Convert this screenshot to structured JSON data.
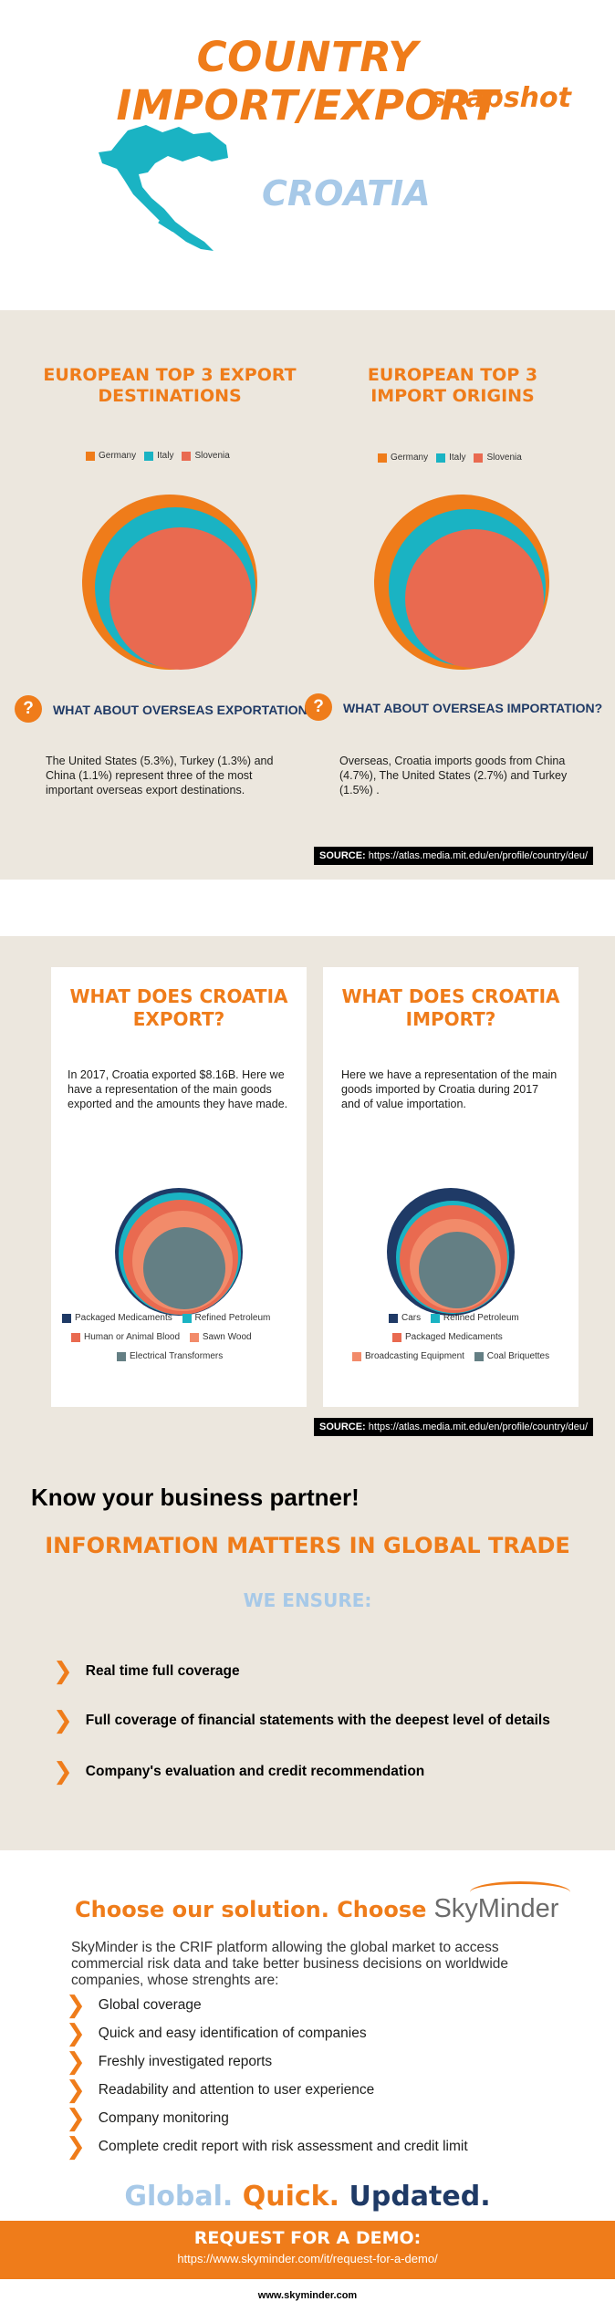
{
  "header": {
    "title": "COUNTRY IMPORT/EXPORT",
    "subtitle": "snapshot",
    "country": "CROATIA",
    "map_color": "#1ab3c3"
  },
  "colors": {
    "orange": "#ef7c1a",
    "teal": "#1ab3c3",
    "coral": "#e96a50",
    "navy": "#1f3a66",
    "light_blue": "#a7c9e8",
    "beige": "#ece7de"
  },
  "section1": {
    "export_title": "EUROPEAN TOP 3 EXPORT DESTINATIONS",
    "import_title": "EUROPEAN TOP 3 IMPORT ORIGINS",
    "export_question": "WHAT ABOUT OVERSEAS EXPORTATION?",
    "import_question": "WHAT ABOUT OVERSEAS IMPORTATION?",
    "export_text": "The  United States (5.3%), Turkey (1.3%) and China (1.1%)  represent three of the most important overseas export destinations.",
    "import_text": "Overseas, Croatia imports goods from China (4.7%), The United States (2.7%) and  Turkey (1.5%) .",
    "source_label": "SOURCE:",
    "source_url": "https://atlas.media.mit.edu/en/profile/country/deu/"
  },
  "chart_data": [
    {
      "type": "pie",
      "title": "EUROPEAN TOP 3 EXPORT DESTINATIONS",
      "categories": [
        "Germany",
        "Italy",
        "Slovenia"
      ],
      "colors": [
        "#ef7c1a",
        "#1ab3c3",
        "#e96a50"
      ]
    },
    {
      "type": "pie",
      "title": "EUROPEAN TOP 3 IMPORT ORIGINS",
      "categories": [
        "Germany",
        "Italy",
        "Slovenia"
      ],
      "colors": [
        "#ef7c1a",
        "#1ab3c3",
        "#e96a50"
      ]
    },
    {
      "type": "pie",
      "title": "WHAT DOES CROATIA EXPORT?",
      "categories": [
        "Packaged Medicaments",
        "Refined Petroleum",
        "Human or Animal Blood",
        "Sawn Wood",
        "Electrical Transformers"
      ],
      "colors": [
        "#1f3a66",
        "#1ab3c3",
        "#e96a50",
        "#f28b6a",
        "#647f84"
      ]
    },
    {
      "type": "pie",
      "title": "WHAT DOES CROATIA IMPORT?",
      "categories": [
        "Cars",
        "Refined Petroleum",
        "Packaged Medicaments",
        "Broadcasting Equipment",
        "Coal Briquettes"
      ],
      "colors": [
        "#1f3a66",
        "#1ab3c3",
        "#e96a50",
        "#f28b6a",
        "#647f84"
      ]
    }
  ],
  "legend": {
    "export_top3": [
      "Germany",
      "Italy",
      "Slovenia"
    ],
    "import_top3": [
      "Germany",
      "Italy",
      "Slovenia"
    ]
  },
  "section2": {
    "export_title": "WHAT DOES CROATIA EXPORT?",
    "import_title": "WHAT DOES CROATIA IMPORT?",
    "export_text": "In 2017, Croatia exported $8.16B.  Here we have a representation of the main goods exported and the amounts they have made.",
    "import_text": "Here we have a representation of the main goods imported by Croatia  during 2017 and of value importation.",
    "export_legend": [
      "Packaged Medicaments",
      "Refined Petroleum",
      "Human or Animal Blood",
      "Sawn Wood",
      "Electrical Transformers"
    ],
    "import_legend": [
      "Cars",
      "Refined Petroleum",
      "Packaged Medicaments",
      "Broadcasting Equipment",
      "Coal Briquettes"
    ],
    "source_label": "SOURCE:",
    "source_url": "https://atlas.media.mit.edu/en/profile/country/deu/"
  },
  "section3": {
    "know": "Know your business partner!",
    "info": "INFORMATION MATTERS IN GLOBAL TRADE",
    "ensure": "WE ENSURE:",
    "items": [
      "Real time full coverage",
      "Full coverage of financial statements with the deepest level of details",
      "Company's evaluation and credit recommendation"
    ]
  },
  "section4": {
    "choose": "Choose our solution. Choose",
    "brand": "SkyMinder",
    "description": "SkyMinder is the CRIF platform allowing the global market to access commercial risk data and take better business decisions on worldwide companies, whose strenghts are:",
    "features": [
      "Global coverage",
      "Quick and easy identification of companies",
      "Freshly investigated reports",
      "Readability and attention to user experience",
      "Company monitoring",
      "Complete credit report with risk assessment and credit limit"
    ],
    "tag_global": "Global.",
    "tag_quick": "Quick.",
    "tag_updated": "Updated."
  },
  "demo": {
    "title": "REQUEST FOR A DEMO:",
    "url": "https://www.skyminder.com/it/request-for-a-demo/"
  },
  "footer": {
    "site": "www.skyminder.com"
  }
}
